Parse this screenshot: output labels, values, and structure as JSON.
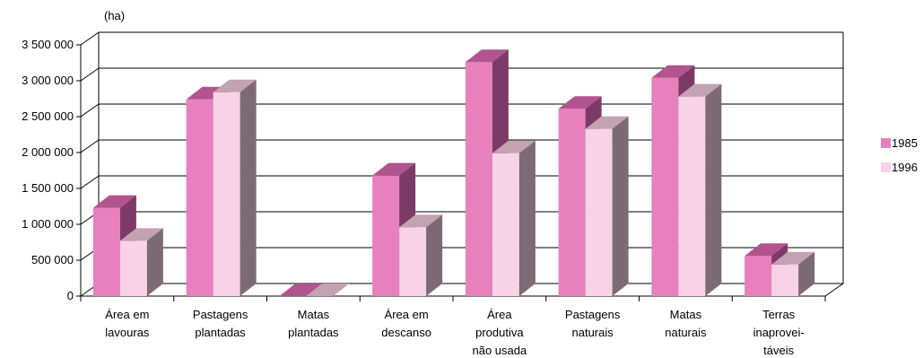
{
  "chart_data": {
    "type": "bar",
    "unit_label": "(ha)",
    "categories": [
      [
        "Área em",
        "lavouras"
      ],
      [
        "Pastagens",
        "plantadas"
      ],
      [
        "Matas",
        "plantadas"
      ],
      [
        "Área em",
        "descanso"
      ],
      [
        "Área",
        "produtiva",
        "não usada"
      ],
      [
        "Pastagens",
        "naturais"
      ],
      [
        "Matas",
        "naturais"
      ],
      [
        "Terras",
        "inaprovei-",
        "táveis"
      ]
    ],
    "series": [
      {
        "name": "1985",
        "values": [
          1230000,
          2740000,
          0,
          1680000,
          3260000,
          2610000,
          3040000,
          560000
        ]
      },
      {
        "name": "1996",
        "values": [
          770000,
          2840000,
          0,
          960000,
          1990000,
          2330000,
          2780000,
          440000
        ]
      }
    ],
    "yticks": [
      "0",
      "500 000",
      "1 000 000",
      "1 500 000",
      "2 000 000",
      "2 500 000",
      "3 000 000",
      "3 500 000"
    ],
    "ylim": [
      0,
      3500000
    ],
    "grid": true,
    "three_d": true,
    "legend_position": "right",
    "colors": {
      "s1985_front": "#e880bd",
      "s1985_top": "#b15490",
      "s1985_side": "#7e3a66",
      "s1996_front": "#f8d2e7",
      "s1996_top": "#c3a2b1",
      "s1996_side": "#7c6a74",
      "grid": "#000000",
      "axis": "#000000"
    }
  }
}
